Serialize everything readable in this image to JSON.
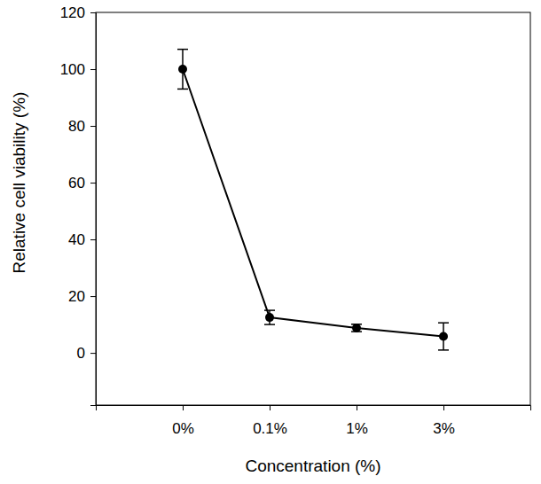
{
  "chart_data": {
    "type": "line",
    "x_label": "Concentration (%)",
    "y_label": "Relative cell viability (%)",
    "categories": [
      "0%",
      "0.1%",
      "1%",
      "3%"
    ],
    "values": [
      100,
      12.5,
      8.8,
      5.8
    ],
    "errors": [
      7,
      2.5,
      1.3,
      4.8
    ],
    "color": "#000000",
    "marker": "circle",
    "line_style": "solid",
    "ylim": [
      -18.4,
      120
    ],
    "yticks": [
      0,
      20,
      40,
      60,
      80,
      100,
      120
    ],
    "grid": false
  }
}
